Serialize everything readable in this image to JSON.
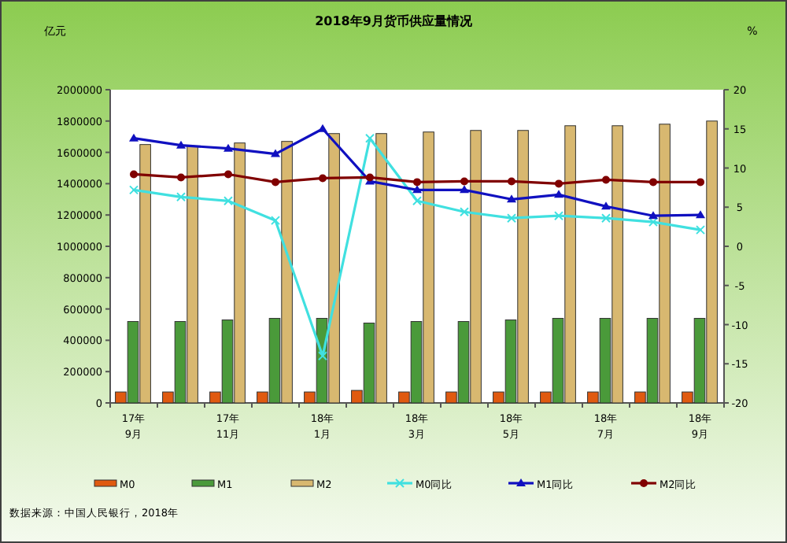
{
  "chart_data": {
    "type": "bar",
    "title": "2018年9月货币供应量情况",
    "ylabel": "亿元",
    "y2label": "%",
    "categories": [
      "17年 9月",
      null,
      "17年 11月",
      null,
      "18年 1月",
      null,
      "18年 3月",
      null,
      "18年 5月",
      null,
      "18年 7月",
      null,
      "18年 9月"
    ],
    "ylim": [
      0,
      2000000
    ],
    "yticks": [
      0,
      200000,
      400000,
      600000,
      800000,
      1000000,
      1200000,
      1400000,
      1600000,
      1800000,
      2000000
    ],
    "y2lim": [
      -20,
      20
    ],
    "y2ticks": [
      -20,
      -15,
      -10,
      -5,
      0,
      5,
      10,
      15,
      20
    ],
    "grid": false,
    "legend": "bottom",
    "series": [
      {
        "name": "M0",
        "color": "#e05a10",
        "values": [
          70000,
          70000,
          70000,
          70000,
          70000,
          80000,
          70000,
          70000,
          70000,
          70000,
          70000,
          70000,
          70000
        ]
      },
      {
        "name": "M1",
        "color": "#4a9a3a",
        "values": [
          520000,
          520000,
          530000,
          540000,
          540000,
          510000,
          520000,
          520000,
          530000,
          540000,
          540000,
          540000,
          540000
        ]
      },
      {
        "name": "M2",
        "color": "#d8b870",
        "values": [
          1650000,
          1640000,
          1660000,
          1670000,
          1720000,
          1720000,
          1730000,
          1740000,
          1740000,
          1770000,
          1770000,
          1780000,
          1800000
        ]
      },
      {
        "name": "M0同比",
        "type": "line",
        "axis": "y2",
        "marker": "cross",
        "color": "#40e0e0",
        "values": [
          7.2,
          6.3,
          5.8,
          3.3,
          -14.0,
          13.8,
          5.8,
          4.4,
          3.6,
          3.9,
          3.6,
          3.1,
          2.1
        ]
      },
      {
        "name": "M1同比",
        "type": "line",
        "axis": "y2",
        "marker": "triangle",
        "color": "#1010c0",
        "values": [
          13.8,
          12.9,
          12.5,
          11.8,
          15.0,
          8.3,
          7.2,
          7.2,
          6.0,
          6.6,
          5.1,
          3.9,
          4.0
        ]
      },
      {
        "name": "M2同比",
        "type": "line",
        "axis": "y2",
        "marker": "circle",
        "color": "#800000",
        "values": [
          9.2,
          8.8,
          9.2,
          8.2,
          8.7,
          8.8,
          8.2,
          8.3,
          8.3,
          8.0,
          8.5,
          8.2,
          8.2
        ]
      }
    ],
    "annotations": [
      "数据来源：中国人民银行，2018年"
    ]
  }
}
